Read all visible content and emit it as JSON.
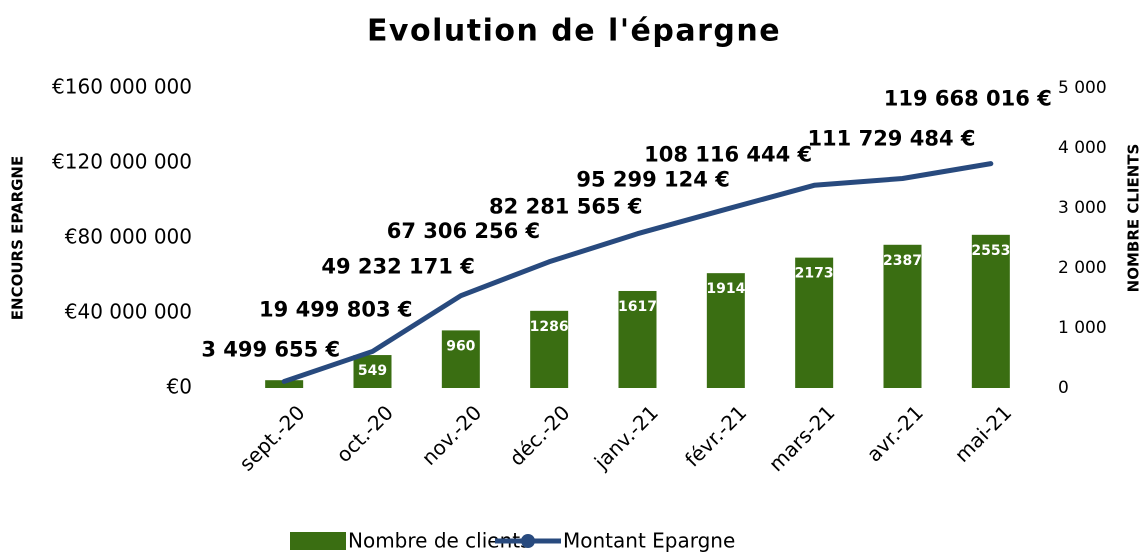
{
  "chart_data": {
    "type": "bar-line",
    "title": "Evolution de l'épargne",
    "y_label": "ENCOURS EPARGNE",
    "y2_label": "NOMBRE CLIENTS",
    "categories": [
      "sept.-20",
      "oct.-20",
      "nov.-20",
      "déc.-20",
      "janv.-21",
      "févr.-21",
      "mars-21",
      "avr.-21",
      "mai-21"
    ],
    "series": [
      {
        "name": "Nombre de clients",
        "type": "bar",
        "axis": "y2",
        "color": "#3a6e12",
        "values": [
          130,
          549,
          960,
          1286,
          1617,
          1914,
          2173,
          2387,
          2553
        ],
        "value_labels": [
          null,
          "549",
          "960",
          "1286",
          "1617",
          "1914",
          "2173",
          "2387",
          "2553"
        ]
      },
      {
        "name": "Montant Epargne",
        "type": "line",
        "axis": "y",
        "color": "#284a7e",
        "values": [
          3499655,
          19499803,
          49232171,
          67306256,
          82281565,
          95299124,
          108116444,
          111729484,
          119668016
        ],
        "value_labels": [
          "3 499 655 €",
          "19 499 803 €",
          "49 232 171 €",
          "67 306 256 €",
          "82 281 565 €",
          "95 299 124 €",
          "108 116 444 €",
          "111 729 484 €",
          "119 668 016 €"
        ]
      }
    ],
    "ylim": [
      0,
      160000000
    ],
    "yticks": [
      {
        "value": 0,
        "label": "€0"
      },
      {
        "value": 40000000,
        "label": "€40 000 000"
      },
      {
        "value": 80000000,
        "label": "€80 000 000"
      },
      {
        "value": 120000000,
        "label": "€120 000 000"
      },
      {
        "value": 160000000,
        "label": "€160 000 000"
      }
    ],
    "y2lim": [
      0,
      5000
    ],
    "y2ticks": [
      0,
      {
        "value": 1000,
        "label": "1 000"
      },
      {
        "value": 2000,
        "label": "2 000"
      },
      {
        "value": 3000,
        "label": "3 000"
      },
      {
        "value": 4000,
        "label": "4 000"
      },
      {
        "value": 5000,
        "label": "5 000"
      }
    ],
    "legend": "bottom"
  }
}
